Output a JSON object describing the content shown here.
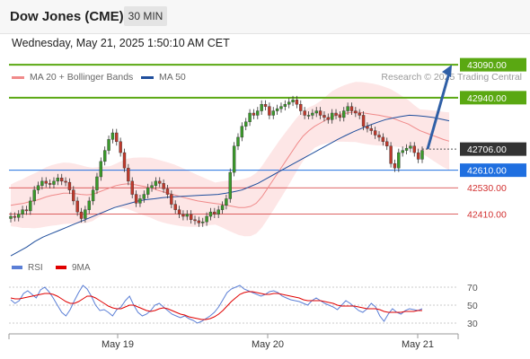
{
  "header": {
    "instrument": "Dow Jones (CME)",
    "timeframe": "30 MIN",
    "datetime": "Wednesday, May 21, 2025 1:50:10 AM CET"
  },
  "legend": {
    "ma20": "MA 20 + Bollinger Bands",
    "ma50": "MA 50",
    "credit": "Research © 2025 Trading Central",
    "ma20_color": "#f08a8a",
    "ma50_color": "#1f4e9c"
  },
  "rsi_legend": {
    "rsi": "RSI",
    "ma": "9MA",
    "rsi_color": "#5b7fd6",
    "ma_color": "#e00000"
  },
  "colors": {
    "resistance": "#5aa812",
    "support": "#1f6fe0",
    "support_red": "#d23030",
    "current": "#333333",
    "arrow": "#2f5fa6",
    "band": "#fde6e6"
  },
  "chart_data": {
    "type": "candlestick",
    "price_axis_ylim": [
      42200,
      43160
    ],
    "x_tick_labels": [
      "May 19",
      "May 20",
      "May 21"
    ],
    "levels": [
      {
        "label": "43090.00",
        "value": 43090,
        "style": "resistance-target"
      },
      {
        "label": "42940.00",
        "value": 42940,
        "style": "resistance"
      },
      {
        "label": "42706.00",
        "value": 42706,
        "style": "current"
      },
      {
        "label": "42610.00",
        "value": 42610,
        "style": "pivot"
      },
      {
        "label": "42530.00",
        "value": 42530,
        "style": "support"
      },
      {
        "label": "42410.00",
        "value": 42410,
        "style": "support"
      }
    ],
    "close": [
      42400,
      42395,
      42410,
      42430,
      42425,
      42470,
      42520,
      42540,
      42560,
      42550,
      42545,
      42560,
      42575,
      42560,
      42555,
      42520,
      42470,
      42420,
      42390,
      42430,
      42470,
      42520,
      42580,
      42650,
      42700,
      42750,
      42780,
      42740,
      42690,
      42620,
      42560,
      42500,
      42460,
      42480,
      42500,
      42530,
      42540,
      42560,
      42550,
      42525,
      42500,
      42455,
      42430,
      42410,
      42400,
      42410,
      42385,
      42380,
      42370,
      42375,
      42400,
      42420,
      42410,
      42430,
      42450,
      42480,
      42600,
      42720,
      42760,
      42810,
      42830,
      42870,
      42860,
      42880,
      42910,
      42900,
      42860,
      42880,
      42890,
      42900,
      42910,
      42920,
      42930,
      42910,
      42880,
      42860,
      42860,
      42870,
      42880,
      42860,
      42850,
      42840,
      42870,
      42860,
      42850,
      42880,
      42900,
      42880,
      42870,
      42860,
      42810,
      42800,
      42790,
      42770,
      42760,
      42740,
      42720,
      42640,
      42620,
      42690,
      42700,
      42710,
      42720,
      42690,
      42660,
      42700
    ],
    "ma20_approx": [
      42450,
      42455,
      42458,
      42465,
      42470,
      42478,
      42488,
      42495,
      42500,
      42505,
      42505,
      42503,
      42500,
      42498,
      42500,
      42510,
      42520,
      42530,
      42540,
      42545,
      42548,
      42545,
      42540,
      42535,
      42530,
      42520,
      42512,
      42505,
      42498,
      42490,
      42483,
      42476,
      42470,
      42466,
      42462,
      42458,
      42455,
      42450,
      42445,
      42440,
      42440,
      42445,
      42460,
      42490,
      42530,
      42570,
      42610,
      42650,
      42690,
      42730,
      42765,
      42790,
      42810,
      42825,
      42840,
      42855,
      42862,
      42868,
      42872,
      42875,
      42872,
      42868,
      42864,
      42860,
      42855,
      42850,
      42840,
      42830,
      42820,
      42805,
      42790,
      42780,
      42770,
      42760,
      42750,
      42742
    ],
    "ma50_approx": [
      42220,
      42240,
      42260,
      42285,
      42305,
      42320,
      42335,
      42350,
      42365,
      42380,
      42395,
      42410,
      42425,
      42440,
      42450,
      42460,
      42470,
      42476,
      42480,
      42485,
      42488,
      42490,
      42492,
      42494,
      42496,
      42498,
      42500,
      42505,
      42512,
      42520,
      42535,
      42550,
      42570,
      42590,
      42610,
      42630,
      42650,
      42670,
      42690,
      42710,
      42730,
      42750,
      42768,
      42785,
      42800,
      42815,
      42828,
      42840,
      42848,
      42855,
      42860,
      42858,
      42855,
      42850,
      42842,
      42835
    ],
    "rsi_panel": {
      "y_ticks": [
        70,
        50,
        30
      ],
      "ylim": [
        20,
        80
      ],
      "rsi": [
        56,
        52,
        55,
        63,
        66,
        62,
        58,
        67,
        70,
        65,
        58,
        50,
        42,
        38,
        45,
        55,
        64,
        72,
        68,
        60,
        50,
        44,
        45,
        42,
        38,
        45,
        48,
        55,
        60,
        50,
        42,
        38,
        40,
        44,
        50,
        52,
        48,
        44,
        40,
        38,
        36,
        38,
        35,
        33,
        30,
        32,
        35,
        38,
        42,
        48,
        56,
        64,
        68,
        70,
        72,
        68,
        66,
        64,
        62,
        60,
        62,
        65,
        66,
        64,
        60,
        58,
        56,
        55,
        54,
        52,
        50,
        55,
        58,
        55,
        52,
        50,
        48,
        45,
        50,
        55,
        52,
        48,
        44,
        42,
        46,
        52,
        48,
        38,
        32,
        40,
        46,
        42,
        40,
        44,
        46,
        45,
        44,
        46
      ],
      "ma": [
        58,
        57,
        57,
        58,
        59,
        60,
        61,
        62,
        63,
        63,
        62,
        60,
        57,
        54,
        52,
        52,
        54,
        57,
        60,
        60,
        58,
        55,
        52,
        49,
        47,
        46,
        46,
        48,
        50,
        50,
        48,
        46,
        44,
        43,
        44,
        46,
        47,
        46,
        44,
        42,
        40,
        39,
        37,
        36,
        35,
        34,
        34,
        35,
        37,
        40,
        44,
        49,
        54,
        58,
        62,
        64,
        65,
        65,
        64,
        63,
        62,
        62,
        63,
        63,
        62,
        61,
        60,
        59,
        58,
        56,
        55,
        55,
        55,
        55,
        54,
        53,
        52,
        50,
        49,
        49,
        49,
        49,
        48,
        47,
        46,
        46,
        46,
        45,
        43,
        42,
        42,
        42,
        42,
        43,
        43,
        43,
        44,
        44
      ]
    }
  }
}
